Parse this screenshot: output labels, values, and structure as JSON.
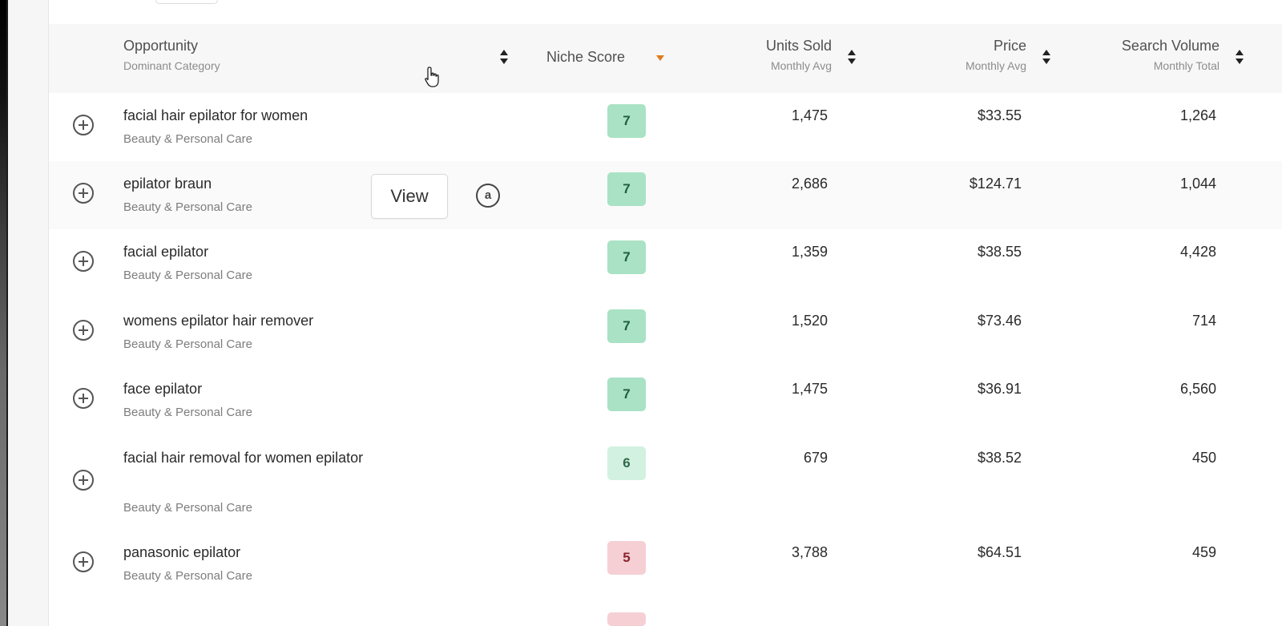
{
  "table": {
    "columns": {
      "opportunity": {
        "label": "Opportunity",
        "sub": "Dominant Category"
      },
      "niche_score": {
        "label": "Niche Score"
      },
      "units_sold": {
        "label": "Units Sold",
        "sub": "Monthly Avg"
      },
      "price": {
        "label": "Price",
        "sub": "Monthly Avg"
      },
      "search_volume": {
        "label": "Search Volume",
        "sub": "Monthly Total"
      }
    },
    "rows": [
      {
        "name": "facial hair epilator for women",
        "category": "Beauty & Personal Care",
        "score": "7",
        "units": "1,475",
        "price": "$33.55",
        "search": "1,264"
      },
      {
        "name": "epilator braun",
        "category": "Beauty & Personal Care",
        "score": "7",
        "units": "2,686",
        "price": "$124.71",
        "search": "1,044"
      },
      {
        "name": "facial epilator",
        "category": "Beauty & Personal Care",
        "score": "7",
        "units": "1,359",
        "price": "$38.55",
        "search": "4,428"
      },
      {
        "name": "womens epilator hair remover",
        "category": "Beauty & Personal Care",
        "score": "7",
        "units": "1,520",
        "price": "$73.46",
        "search": "714"
      },
      {
        "name": "face epilator",
        "category": "Beauty & Personal Care",
        "score": "7",
        "units": "1,475",
        "price": "$36.91",
        "search": "6,560"
      },
      {
        "name": "facial hair removal for women epilator",
        "category": "Beauty & Personal Care",
        "score": "6",
        "units": "679",
        "price": "$38.52",
        "search": "450"
      },
      {
        "name": "panasonic epilator",
        "category": "Beauty & Personal Care",
        "score": "5",
        "units": "3,788",
        "price": "$64.51",
        "search": "459"
      }
    ],
    "hover_actions": {
      "view_label": "View",
      "amazon_icon_glyph": "a"
    }
  },
  "colors": {
    "score_high": "#a9e2c4",
    "score_mid": "#d2f1e1",
    "score_low": "#f6cfd4",
    "sort_active": "#e07b1a"
  }
}
